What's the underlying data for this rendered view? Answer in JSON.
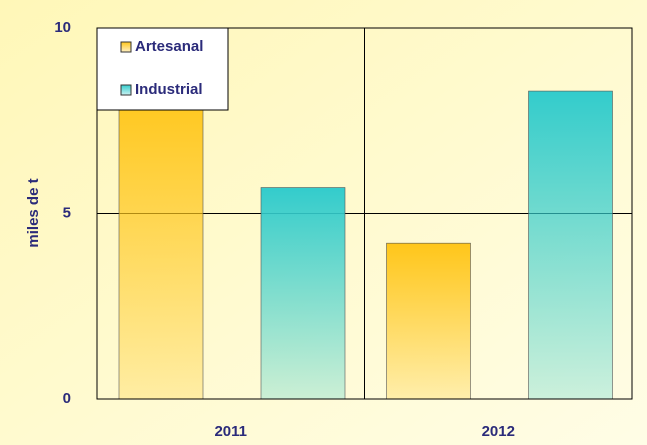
{
  "chart_data": {
    "type": "bar",
    "y_label": "miles de t",
    "categories": [
      "2011",
      "2012"
    ],
    "series": [
      {
        "name": "Artesanal",
        "color": "#ffc61a",
        "values": [
          8.4,
          4.2
        ]
      },
      {
        "name": "Industrial",
        "color": "#33cccc",
        "values": [
          5.7,
          8.3
        ]
      }
    ],
    "ylim": [
      0,
      10
    ],
    "yticks": [
      0,
      5,
      10
    ],
    "grid": true
  }
}
